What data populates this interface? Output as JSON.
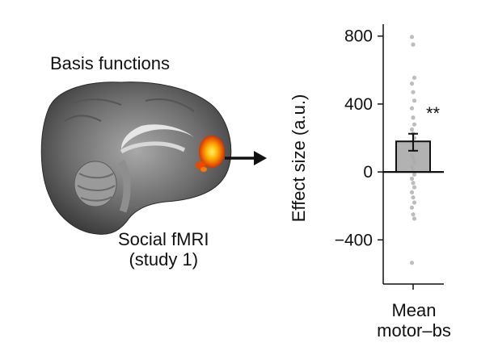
{
  "figure": {
    "brain_panel": {
      "title": "Basis functions",
      "caption_line1": "Social fMRI",
      "caption_line2": "(study 1)"
    }
  },
  "chart_data": {
    "type": "bar",
    "categories": [
      "Mean motor–bs"
    ],
    "category_lines": [
      "Mean",
      "motor–bs"
    ],
    "values": [
      180
    ],
    "error_bar": {
      "low": 125,
      "high": 225
    },
    "ylabel": "Effect size (a.u.)",
    "xlabel": "",
    "ylim": [
      -660,
      870
    ],
    "yticks": [
      -400,
      0,
      400,
      800
    ],
    "ytick_labels": [
      "−400",
      "0",
      "400",
      "800"
    ],
    "significance": "**",
    "individual_points": [
      795,
      750,
      555,
      520,
      470,
      420,
      375,
      320,
      280,
      250,
      225,
      200,
      175,
      150,
      125,
      100,
      80,
      55,
      30,
      10,
      -15,
      -40,
      -65,
      -90,
      -120,
      -150,
      -180,
      -210,
      -250,
      -275,
      -535
    ],
    "colors": {
      "bar": "#aaaaaa",
      "points": "#bdbdbd",
      "axis": "#111111"
    }
  }
}
